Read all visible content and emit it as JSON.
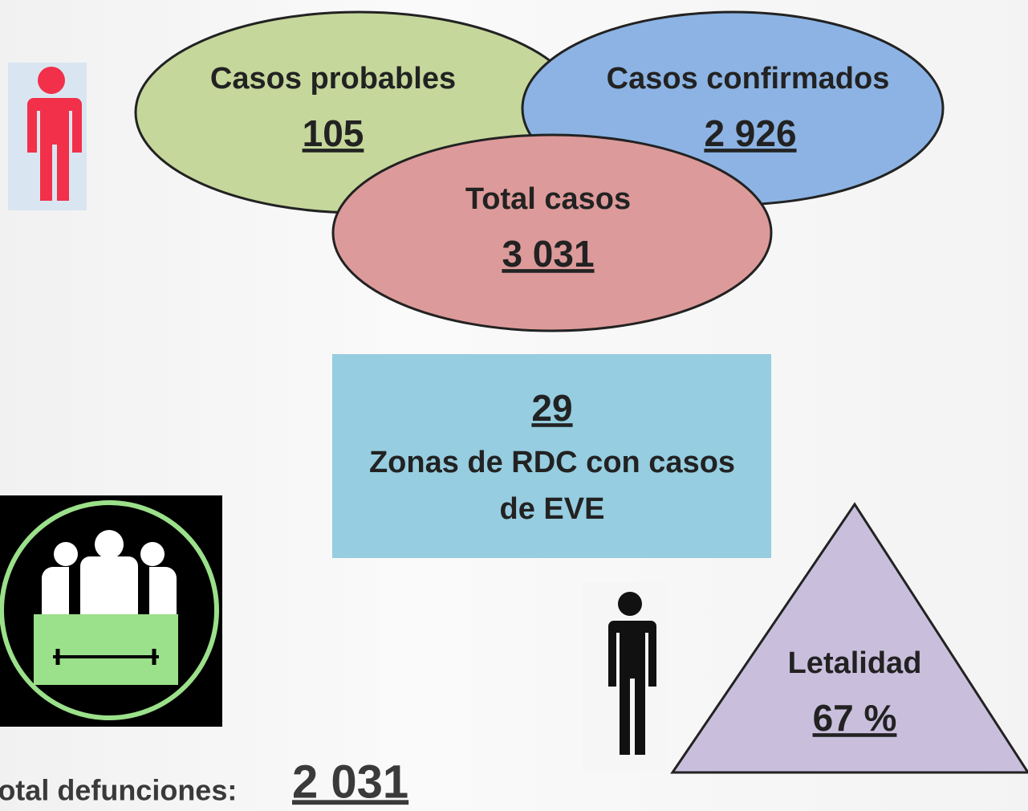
{
  "probables": {
    "label": "Casos probables",
    "value": "105"
  },
  "confirmados": {
    "label": "Casos confirmados",
    "value": "2 926"
  },
  "total": {
    "label": "Total casos",
    "value": "3 031"
  },
  "zonas": {
    "value": "29",
    "label_lines": [
      "Zonas de RDC con casos",
      "de EVE"
    ]
  },
  "letalidad": {
    "label": "Letalidad",
    "value": "67 %"
  },
  "defunciones": {
    "label": "Total defunciones:",
    "value": "2 031"
  }
}
